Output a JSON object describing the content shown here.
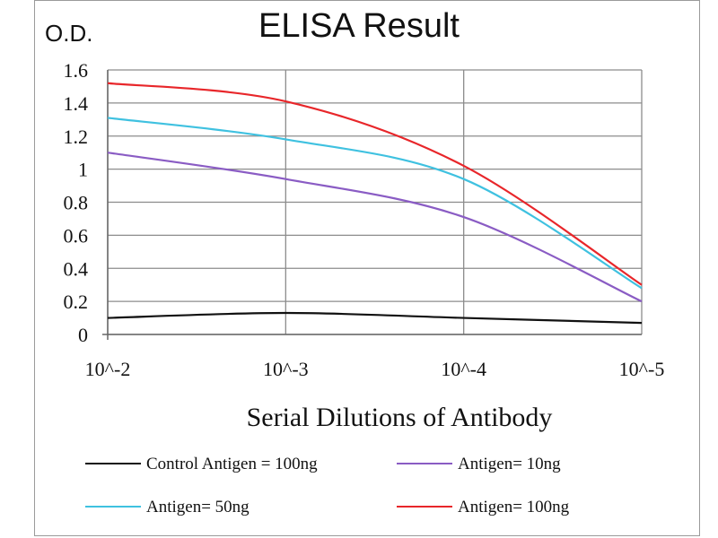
{
  "chart_data": {
    "type": "line",
    "title": "ELISA Result",
    "ylabel": "O.D.",
    "xlabel": "Serial Dilutions  of Antibody",
    "categories": [
      "10^-2",
      "10^-3",
      "10^-4",
      "10^-5"
    ],
    "ylim": [
      0,
      1.6
    ],
    "yticks": [
      "0",
      "0.2",
      "0.4",
      "0.6",
      "0.8",
      "1",
      "1.2",
      "1.4",
      "1.6"
    ],
    "grid": true,
    "legend_position": "bottom",
    "series": [
      {
        "name": "Control Antigen = 100ng",
        "color": "#111111",
        "values": [
          0.1,
          0.13,
          0.1,
          0.07
        ]
      },
      {
        "name": "Antigen= 10ng",
        "color": "#8a5cc4",
        "values": [
          1.1,
          0.94,
          0.71,
          0.2
        ]
      },
      {
        "name": "Antigen= 50ng",
        "color": "#3fc1e0",
        "values": [
          1.31,
          1.18,
          0.94,
          0.28
        ]
      },
      {
        "name": "Antigen= 100ng",
        "color": "#e8262a",
        "values": [
          1.52,
          1.41,
          1.02,
          0.3
        ]
      }
    ]
  }
}
